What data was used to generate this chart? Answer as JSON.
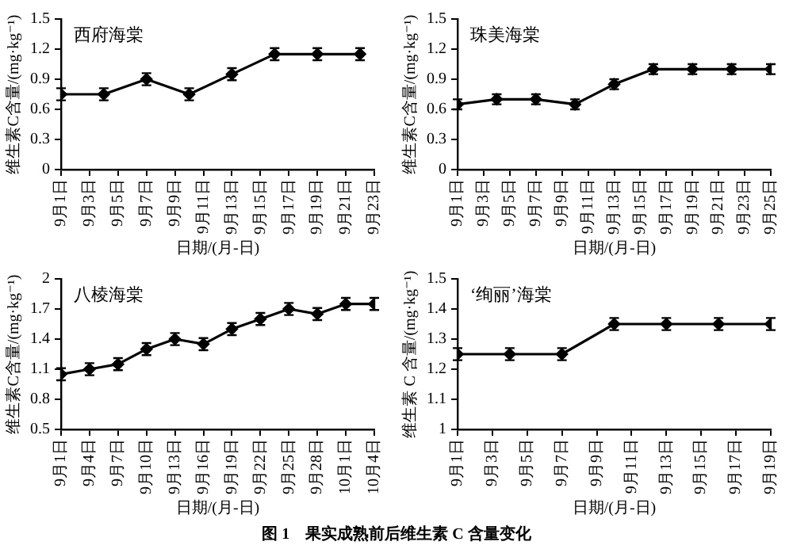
{
  "chart_data": [
    {
      "type": "line",
      "title": "西府海棠",
      "xlabel": "日期/(月-日)",
      "ylabel": "维生素C含量/(mg·kg⁻¹)",
      "x": [
        "--09-01",
        "--09-04",
        "--09-07",
        "--09-10",
        "--09-13",
        "--09-16",
        "--09-19",
        "--09-22"
      ],
      "values": [
        0.75,
        0.75,
        0.9,
        0.75,
        0.95,
        1.15,
        1.15,
        1.15
      ],
      "errors": [
        0.06,
        0.06,
        0.06,
        0.06,
        0.06,
        0.06,
        0.06,
        0.06
      ],
      "color": "#000000",
      "marker": "diamond",
      "line_style": "solid",
      "xlim": [
        "--09-01",
        "--09-23"
      ],
      "xticks": [
        {
          "value": "--09-01",
          "label": "9月1日"
        },
        {
          "value": "--09-03",
          "label": "9月3日"
        },
        {
          "value": "--09-05",
          "label": "9月5日"
        },
        {
          "value": "--09-07",
          "label": "9月7日"
        },
        {
          "value": "--09-09",
          "label": "9月9日"
        },
        {
          "value": "--09-11",
          "label": "9月11日"
        },
        {
          "value": "--09-13",
          "label": "9月13日"
        },
        {
          "value": "--09-15",
          "label": "9月15日"
        },
        {
          "value": "--09-17",
          "label": "9月17日"
        },
        {
          "value": "--09-19",
          "label": "9月19日"
        },
        {
          "value": "--09-21",
          "label": "9月21日"
        },
        {
          "value": "--09-23",
          "label": "9月23日"
        }
      ],
      "ylim": [
        0,
        1.5
      ],
      "yticks": [
        0,
        0.3,
        0.6,
        0.9,
        1.2,
        1.5
      ],
      "grid": false,
      "legend": false,
      "annotations": [
        "图 1　果实成熟前后维生素 C 含量变化"
      ]
    },
    {
      "type": "line",
      "title": "珠美海棠",
      "xlabel": "日期/(月-日)",
      "ylabel": "维生素C含量/(mg·kg⁻¹)",
      "x": [
        "--09-01",
        "--09-04",
        "--09-07",
        "--09-10",
        "--09-13",
        "--09-16",
        "--09-19",
        "--09-22",
        "--09-25"
      ],
      "values": [
        0.65,
        0.7,
        0.7,
        0.65,
        0.85,
        1.0,
        1.0,
        1.0,
        1.0
      ],
      "errors": [
        0.05,
        0.05,
        0.05,
        0.05,
        0.05,
        0.05,
        0.05,
        0.05,
        0.05
      ],
      "color": "#000000",
      "marker": "diamond",
      "line_style": "solid",
      "xlim": [
        "--09-01",
        "--09-25"
      ],
      "xticks": [
        {
          "value": "--09-01",
          "label": "9月1日"
        },
        {
          "value": "--09-03",
          "label": "9月3日"
        },
        {
          "value": "--09-05",
          "label": "9月5日"
        },
        {
          "value": "--09-07",
          "label": "9月7日"
        },
        {
          "value": "--09-09",
          "label": "9月9日"
        },
        {
          "value": "--09-11",
          "label": "9月11日"
        },
        {
          "value": "--09-13",
          "label": "9月13日"
        },
        {
          "value": "--09-15",
          "label": "9月15日"
        },
        {
          "value": "--09-17",
          "label": "9月17日"
        },
        {
          "value": "--09-19",
          "label": "9月19日"
        },
        {
          "value": "--09-21",
          "label": "9月21日"
        },
        {
          "value": "--09-23",
          "label": "9月23日"
        },
        {
          "value": "--09-25",
          "label": "9月25日"
        }
      ],
      "ylim": [
        0,
        1.5
      ],
      "yticks": [
        0,
        0.3,
        0.6,
        0.9,
        1.2,
        1.5
      ],
      "grid": false,
      "legend": false
    },
    {
      "type": "line",
      "title": "八棱海棠",
      "xlabel": "日期/(月-日)",
      "ylabel": "维生素C含量/(mg·kg⁻¹)",
      "x": [
        "--09-01",
        "--09-04",
        "--09-07",
        "--09-10",
        "--09-13",
        "--09-16",
        "--09-19",
        "--09-22",
        "--09-25",
        "--09-28",
        "--10-01",
        "--10-04"
      ],
      "values": [
        1.05,
        1.1,
        1.15,
        1.3,
        1.4,
        1.35,
        1.5,
        1.6,
        1.7,
        1.65,
        1.75,
        1.75
      ],
      "errors": [
        0.06,
        0.06,
        0.06,
        0.06,
        0.06,
        0.06,
        0.06,
        0.06,
        0.06,
        0.06,
        0.06,
        0.06
      ],
      "color": "#000000",
      "marker": "diamond",
      "line_style": "solid",
      "xlim": [
        "--09-01",
        "--10-04"
      ],
      "xticks": [
        {
          "value": "--09-01",
          "label": "9月1日"
        },
        {
          "value": "--09-04",
          "label": "9月4日"
        },
        {
          "value": "--09-07",
          "label": "9月7日"
        },
        {
          "value": "--09-10",
          "label": "9月10日"
        },
        {
          "value": "--09-13",
          "label": "9月13日"
        },
        {
          "value": "--09-16",
          "label": "9月16日"
        },
        {
          "value": "--09-19",
          "label": "9月19日"
        },
        {
          "value": "--09-22",
          "label": "9月22日"
        },
        {
          "value": "--09-25",
          "label": "9月25日"
        },
        {
          "value": "--09-28",
          "label": "9月28日"
        },
        {
          "value": "--10-01",
          "label": "10月1日"
        },
        {
          "value": "--10-04",
          "label": "10月4日"
        }
      ],
      "ylim": [
        0.5,
        2
      ],
      "yticks": [
        0.5,
        0.8,
        1.1,
        1.4,
        1.7,
        2
      ],
      "grid": false,
      "legend": false
    },
    {
      "type": "line",
      "title": "‘绚丽’海棠",
      "xlabel": "日期/(月-日)",
      "ylabel": "维生素 C 含量/(mg·kg⁻¹)",
      "x": [
        "--09-01",
        "--09-04",
        "--09-07",
        "--09-10",
        "--09-13",
        "--09-16",
        "--09-19"
      ],
      "values": [
        1.25,
        1.25,
        1.25,
        1.35,
        1.35,
        1.35,
        1.35
      ],
      "errors": [
        0.02,
        0.02,
        0.02,
        0.02,
        0.02,
        0.02,
        0.02
      ],
      "color": "#000000",
      "marker": "diamond",
      "line_style": "solid",
      "xlim": [
        "--09-01",
        "--09-19"
      ],
      "xticks": [
        {
          "value": "--09-01",
          "label": "9月1日"
        },
        {
          "value": "--09-03",
          "label": "9月3日"
        },
        {
          "value": "--09-05",
          "label": "9月5日"
        },
        {
          "value": "--09-07",
          "label": "9月7日"
        },
        {
          "value": "--09-09",
          "label": "9月9日"
        },
        {
          "value": "--09-11",
          "label": "9月11日"
        },
        {
          "value": "--09-13",
          "label": "9月13日"
        },
        {
          "value": "--09-15",
          "label": "9月15日"
        },
        {
          "value": "--09-17",
          "label": "9月17日"
        },
        {
          "value": "--09-19",
          "label": "9月19日"
        }
      ],
      "ylim": [
        1,
        1.5
      ],
      "yticks": [
        1,
        1.1,
        1.2,
        1.3,
        1.4,
        1.5
      ],
      "grid": false,
      "legend": false
    }
  ]
}
